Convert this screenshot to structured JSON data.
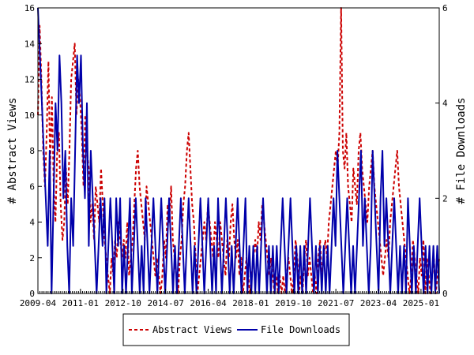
{
  "chart_data": {
    "type": "line",
    "ylabel_left": "# Abstract Views",
    "ylabel_right": "# File Downloads",
    "x_tick_labels": [
      "2009-04",
      "2011-01",
      "2012-10",
      "2014-07",
      "2016-04",
      "2018-01",
      "2019-10",
      "2021-07",
      "2023-04",
      "2025-01"
    ],
    "x_range": [
      "2009-04",
      "2025-10"
    ],
    "ylim_left": [
      0,
      16
    ],
    "ylim_right": [
      0,
      6
    ],
    "y_ticks_left": [
      "0",
      "2",
      "4",
      "6",
      "8",
      "10",
      "12",
      "14",
      "16"
    ],
    "y_ticks_right": [
      "0",
      "2",
      "4",
      "6"
    ],
    "grid": false,
    "legend_position": "bottom-center",
    "series": [
      {
        "name": "Abstract Views",
        "axis": "left",
        "color": "#cc0000",
        "style": "dashed",
        "values": [
          10,
          15,
          12,
          8,
          6,
          9,
          13,
          7,
          11,
          6,
          4,
          8,
          9,
          5,
          3,
          4,
          7,
          5,
          8,
          12,
          13,
          14,
          10,
          12,
          11,
          9,
          6,
          10,
          8,
          7,
          4,
          5,
          3,
          6,
          5,
          4,
          7,
          5,
          3,
          2,
          1,
          0,
          2,
          1,
          3,
          2,
          4,
          3,
          2,
          3,
          2,
          4,
          1,
          2,
          3,
          5,
          7,
          8,
          6,
          5,
          4,
          3,
          6,
          5,
          4,
          3,
          2,
          1,
          2,
          1,
          0,
          1,
          3,
          2,
          5,
          4,
          6,
          3,
          2,
          1,
          0,
          2,
          3,
          5,
          6,
          8,
          9,
          7,
          5,
          4,
          2,
          0,
          1,
          2,
          3,
          4,
          3,
          5,
          4,
          3,
          2,
          4,
          3,
          2,
          4,
          3,
          2,
          1,
          3,
          2,
          4,
          5,
          3,
          2,
          3,
          1,
          2,
          0,
          1,
          2,
          1,
          0,
          1,
          2,
          3,
          2,
          4,
          3,
          5,
          4,
          3,
          2,
          1,
          2,
          1,
          0,
          1,
          0,
          1,
          0,
          1,
          0,
          1,
          2,
          1,
          0,
          1,
          3,
          2,
          0,
          1,
          0,
          2,
          3,
          1,
          2,
          1,
          0,
          1,
          0,
          2,
          3,
          1,
          2,
          3,
          2,
          4,
          5,
          6,
          7,
          8,
          7,
          9,
          16,
          8,
          7,
          9,
          6,
          5,
          4,
          7,
          6,
          5,
          8,
          9,
          7,
          6,
          5,
          4,
          6,
          7,
          8,
          6,
          5,
          4,
          3,
          2,
          1,
          2,
          3,
          2,
          4,
          5,
          6,
          7,
          8,
          6,
          5,
          4,
          3,
          2,
          1,
          0,
          1,
          3,
          2,
          1,
          0,
          2,
          1,
          3,
          0,
          2,
          1,
          0,
          1,
          2,
          0,
          1,
          2
        ]
      },
      {
        "name": "File Downloads",
        "axis": "right",
        "color": "#0000aa",
        "style": "solid",
        "values": [
          6,
          5,
          4,
          3,
          2,
          1,
          3,
          0,
          2,
          4,
          3,
          5,
          4,
          2,
          3,
          1,
          0,
          2,
          1,
          3,
          5,
          4,
          5,
          3,
          2,
          4,
          1,
          3,
          2,
          1,
          0,
          1,
          2,
          1,
          2,
          0,
          1,
          2,
          1,
          0,
          2,
          1,
          2,
          0,
          1,
          0,
          1,
          2,
          0,
          1,
          2,
          1,
          0,
          1,
          0,
          2,
          1,
          0,
          1,
          2,
          1,
          0,
          1,
          2,
          1,
          0,
          1,
          2,
          1,
          0,
          1,
          0,
          1,
          2,
          1,
          0,
          1,
          2,
          1,
          0,
          1,
          0,
          1,
          2,
          1,
          0,
          1,
          2,
          1,
          0,
          1,
          0,
          2,
          1,
          0,
          1,
          2,
          1,
          0,
          1,
          0,
          1,
          2,
          1,
          0,
          1,
          2,
          0,
          1,
          0,
          1,
          0,
          1,
          0,
          1,
          2,
          1,
          0,
          1,
          0,
          1,
          0,
          1,
          0,
          1,
          2,
          1,
          0,
          1,
          2,
          1,
          0,
          1,
          0,
          1,
          0,
          1,
          0,
          1,
          2,
          1,
          0,
          1,
          0,
          1,
          0,
          1,
          0,
          1,
          0,
          1,
          2,
          1,
          3,
          2,
          1,
          0,
          1,
          2,
          1,
          0,
          1,
          0,
          1,
          2,
          3,
          1,
          2,
          1,
          0,
          1,
          3,
          2,
          1,
          0,
          2,
          3,
          1,
          2,
          1,
          0,
          1,
          2,
          1,
          0,
          1,
          0,
          1,
          0,
          2,
          1,
          0,
          1,
          0,
          1,
          2,
          1,
          0,
          1,
          0,
          1,
          0,
          1,
          0,
          1,
          0
        ]
      }
    ]
  }
}
